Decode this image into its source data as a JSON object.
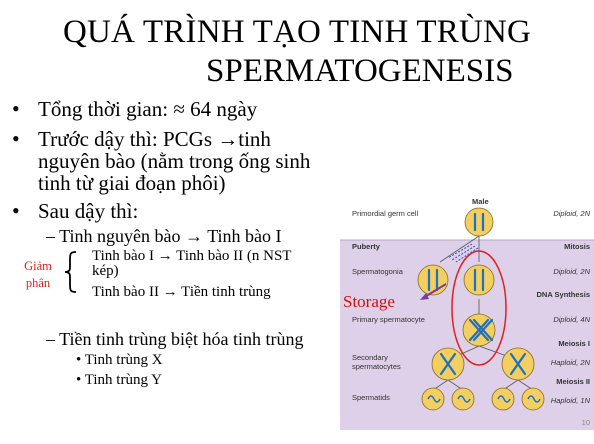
{
  "title": {
    "line1": "QUÁ TRÌNH TẠO TINH TRÙNG",
    "line2": "SPERMATOGENESIS"
  },
  "bullets": {
    "b1": "Tổng thời gian: ≈ 64 ngày",
    "b2_l1": "Trước dậy thì: PCGs →tinh",
    "b2_l2": "nguyên bào (nằm trong ống sinh",
    "b2_l3": "tinh từ giai đoạn phôi)",
    "b3": "Sau dậy thì:",
    "dash1": "– Tinh nguyên bào → Tinh bào I",
    "giam_l1": "Giảm",
    "giam_l2": "phân",
    "meiosis1_l1": "Tinh bào I → Tinh bào II (n NST",
    "meiosis1_l2": "kép)",
    "meiosis2": "Tinh bào II →  Tiền tinh trùng",
    "dash2": "– Tiền tinh trùng biệt hóa tinh trùng",
    "x": "• Tinh trùng X",
    "y": "• Tinh trùng Y"
  },
  "figure": {
    "storage": "Storage",
    "male": "Male",
    "left_labels": [
      "Primordial germ cell",
      "Puberty",
      "Spermatogonia",
      "Primary spermatocyte",
      "Secondary",
      "spermatocytes",
      "Spermatids"
    ],
    "right_labels": [
      "Diploid, 2N",
      "Mitosis",
      "Diploid, 2N",
      "DNA Synthesis",
      "Diploid, 4N",
      "Meiosis I",
      "Haploid, 2N",
      "Meiosis II",
      "Haploid, 1N"
    ],
    "page_number": "10",
    "colors": {
      "band": "#ddd0e8",
      "cell": "#f2cf60",
      "chromosome": "#1f6fbf",
      "circle": "#e02020"
    }
  }
}
